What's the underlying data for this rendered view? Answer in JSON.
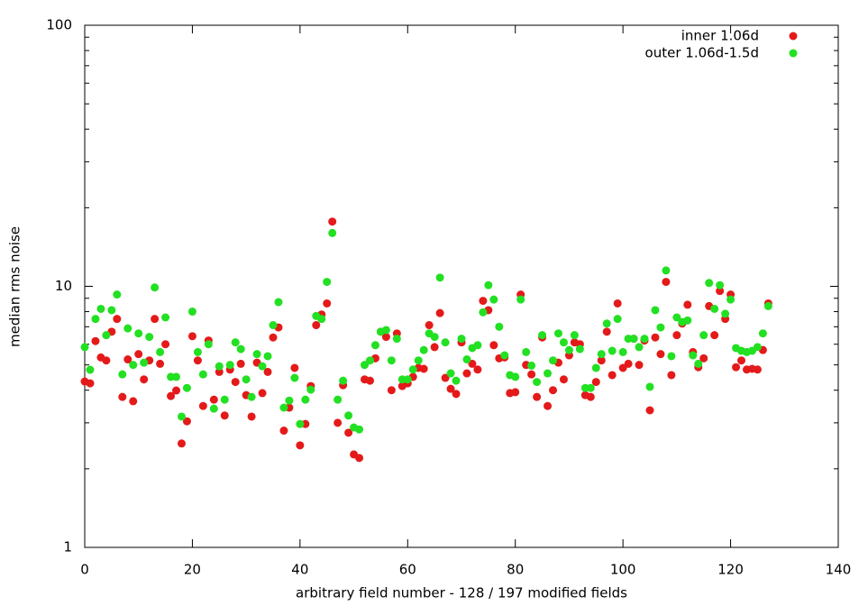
{
  "chart_data": {
    "type": "scatter",
    "x_label": "arbitrary field number - 128 / 197 modified fields",
    "y_label": "median rms noise",
    "xlim": [
      0,
      140
    ],
    "xticks": [
      0,
      20,
      40,
      60,
      80,
      100,
      120,
      140
    ],
    "ylim": [
      1,
      100
    ],
    "yticks": [
      1,
      10,
      100
    ],
    "log_y": true,
    "yminorticks": [
      2,
      3,
      4,
      5,
      6,
      7,
      8,
      9,
      20,
      30,
      40,
      50,
      60,
      70,
      80,
      90
    ],
    "legend": "upper right",
    "x": [
      0,
      1,
      2,
      3,
      4,
      5,
      6,
      7,
      8,
      9,
      10,
      11,
      12,
      13,
      14,
      15,
      16,
      17,
      18,
      19,
      20,
      21,
      22,
      23,
      24,
      25,
      26,
      27,
      28,
      29,
      30,
      31,
      32,
      33,
      34,
      35,
      36,
      37,
      38,
      39,
      40,
      41,
      42,
      43,
      44,
      45,
      46,
      47,
      48,
      49,
      50,
      51,
      52,
      53,
      54,
      55,
      56,
      57,
      58,
      59,
      60,
      61,
      62,
      63,
      64,
      65,
      66,
      67,
      68,
      69,
      70,
      71,
      72,
      73,
      74,
      75,
      76,
      77,
      78,
      79,
      80,
      81,
      82,
      83,
      84,
      85,
      86,
      87,
      88,
      89,
      90,
      91,
      92,
      93,
      94,
      95,
      96,
      97,
      98,
      99,
      100,
      101,
      102,
      103,
      104,
      105,
      106,
      107,
      108,
      109,
      110,
      111,
      112,
      113,
      114,
      115,
      116,
      117,
      118,
      119,
      120,
      121,
      122,
      123,
      124,
      125,
      126,
      127
    ],
    "series": [
      {
        "name": "inner 1.06d",
        "color": "#e41a1a",
        "values": [
          4.32,
          4.25,
          6.17,
          5.34,
          5.2,
          6.7,
          7.5,
          3.77,
          5.25,
          3.63,
          5.5,
          4.4,
          5.2,
          7.5,
          5.05,
          6.0,
          3.8,
          3.99,
          2.5,
          3.04,
          6.44,
          5.2,
          3.48,
          6.2,
          3.68,
          4.7,
          3.2,
          4.8,
          4.3,
          5.05,
          3.83,
          3.17,
          5.1,
          3.9,
          4.7,
          6.37,
          6.96,
          2.8,
          3.43,
          4.87,
          2.46,
          2.97,
          4.15,
          7.1,
          7.8,
          8.6,
          17.7,
          3.0,
          4.18,
          2.75,
          2.27,
          2.2,
          4.4,
          4.35,
          5.3,
          6.7,
          6.4,
          4.0,
          6.6,
          4.15,
          4.25,
          4.5,
          4.87,
          4.83,
          7.1,
          5.85,
          7.9,
          4.46,
          4.05,
          3.87,
          6.1,
          4.64,
          5.05,
          4.8,
          8.8,
          8.1,
          5.95,
          5.3,
          5.34,
          3.9,
          3.93,
          9.3,
          5.0,
          4.6,
          3.77,
          6.37,
          3.48,
          4.0,
          5.1,
          4.4,
          5.44,
          6.1,
          6.0,
          3.83,
          3.77,
          4.3,
          5.2,
          6.7,
          4.57,
          8.6,
          4.87,
          5.05,
          6.3,
          5.0,
          6.2,
          3.35,
          6.37,
          5.5,
          10.4,
          4.57,
          6.5,
          7.2,
          8.5,
          5.6,
          4.9,
          5.3,
          8.4,
          6.5,
          9.6,
          7.5,
          9.3,
          4.9,
          5.2,
          4.8,
          4.83,
          4.8,
          5.7,
          8.6
        ]
      },
      {
        "name": "outer 1.06d-1.5d",
        "color": "#22e022",
        "values": [
          5.85,
          4.79,
          7.5,
          8.2,
          6.5,
          8.1,
          9.3,
          4.6,
          6.9,
          5.0,
          6.6,
          5.1,
          6.4,
          9.9,
          5.6,
          7.6,
          4.5,
          4.5,
          3.17,
          4.08,
          8.0,
          5.6,
          4.6,
          6.0,
          3.4,
          4.94,
          3.68,
          5.0,
          6.1,
          5.75,
          4.4,
          3.77,
          5.5,
          4.94,
          5.4,
          7.1,
          8.7,
          3.43,
          3.65,
          4.46,
          2.97,
          3.68,
          4.02,
          7.7,
          7.5,
          10.4,
          16.0,
          3.68,
          4.35,
          3.2,
          2.88,
          2.83,
          5.0,
          5.2,
          5.95,
          6.7,
          6.8,
          5.2,
          6.3,
          4.4,
          4.4,
          4.8,
          5.2,
          5.7,
          6.6,
          6.4,
          10.8,
          6.1,
          4.64,
          4.35,
          6.3,
          5.25,
          5.8,
          5.95,
          7.95,
          10.1,
          8.9,
          7.0,
          5.44,
          4.57,
          4.5,
          8.9,
          5.6,
          4.97,
          4.3,
          6.5,
          4.64,
          5.2,
          6.6,
          6.1,
          5.7,
          6.5,
          5.75,
          4.08,
          4.08,
          4.87,
          5.5,
          7.2,
          5.66,
          7.5,
          5.6,
          6.3,
          6.3,
          5.85,
          6.3,
          4.12,
          8.1,
          6.96,
          11.5,
          5.4,
          7.6,
          7.3,
          7.4,
          5.44,
          5.05,
          6.5,
          10.3,
          8.2,
          10.1,
          7.85,
          8.9,
          5.8,
          5.66,
          5.6,
          5.66,
          5.85,
          6.6,
          8.4
        ]
      }
    ]
  }
}
